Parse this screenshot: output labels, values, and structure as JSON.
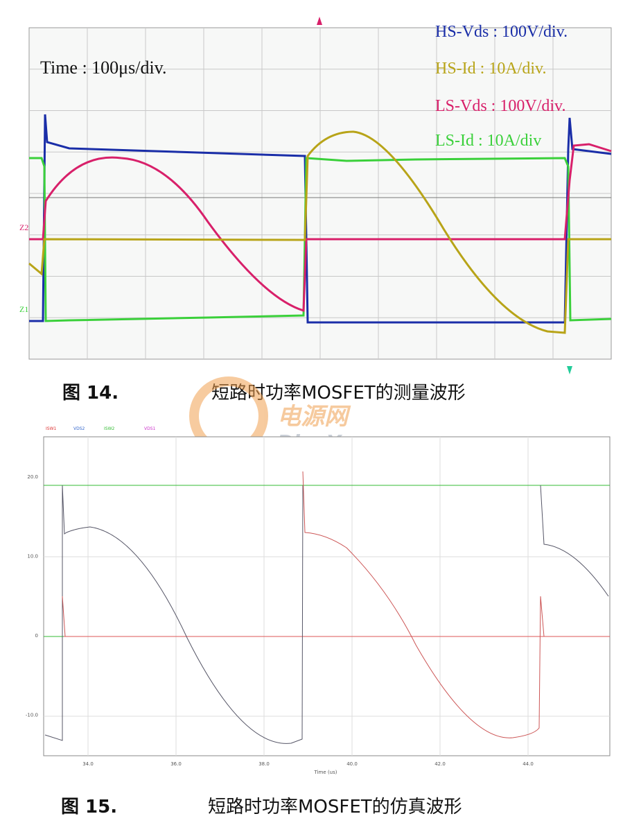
{
  "figure_14": {
    "time_label": "Time : 100μs/div.",
    "legend": [
      "HS-Vds : 100V/div.",
      "HS-Id : 10A/div.",
      "LS-Vds : 100V/div.",
      "LS-Id : 10A/div"
    ],
    "channel_markers": [
      "Z2",
      "Z1"
    ],
    "caption_number": "图 14.",
    "caption_text": "短路时功率MOSFET的测量波形"
  },
  "watermark": {
    "brand": "电源网",
    "site": "DianYuan.com"
  },
  "figure_15": {
    "legend": [
      "ISW1",
      "VDS2",
      "ISW2",
      "VDS1"
    ],
    "y_tick_labels": [
      "20.0",
      "10.0",
      "0",
      "-10.0"
    ],
    "x_tick_labels": [
      "34.0",
      "36.0",
      "38.0",
      "40.0",
      "42.0",
      "44.0"
    ],
    "x_axis_label": "Time (us)",
    "caption_number": "图 15.",
    "caption_text": "短路时功率MOSFET的仿真波形"
  }
}
